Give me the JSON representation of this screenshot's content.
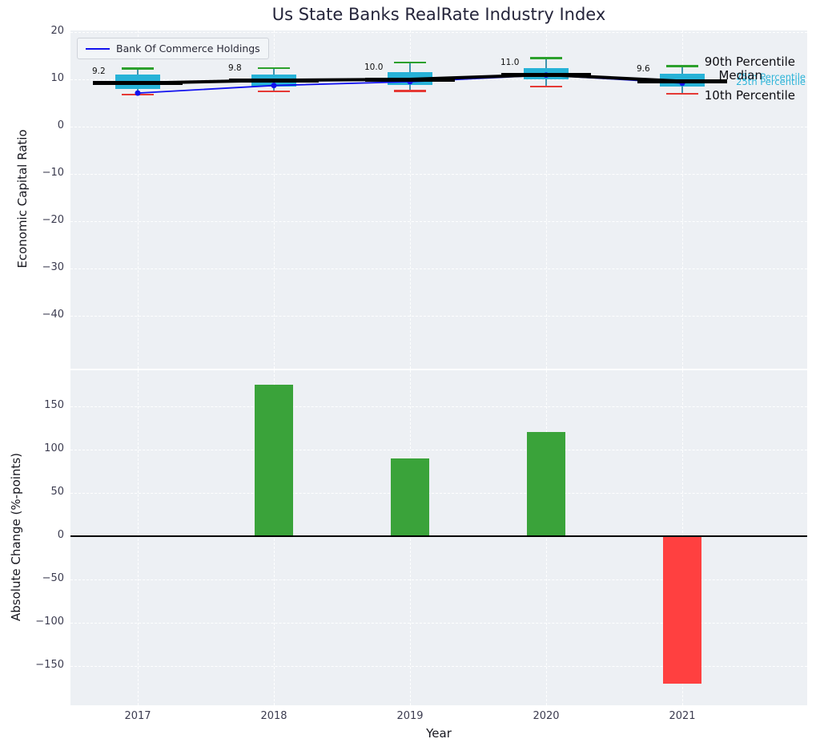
{
  "title": "Us State Banks RealRate Industry Index",
  "figure": {
    "background": "#ffffff",
    "panel_background": "#edf0f4",
    "grid_color": "#ffffff"
  },
  "colors": {
    "box": "#27b2d7",
    "whisker_line": "#3f93ae",
    "whisker_high": "#2ca02c",
    "whisker_low": "#e53935",
    "median": "#000000",
    "company_line": "#1212ef",
    "bar_positive": "#3aa33a",
    "bar_negative": "#ff4040",
    "tick_text": "#3c3c50",
    "annotation_text": "#0d0d12",
    "annotation_cyan": "#2db4d8"
  },
  "chart_data": [
    {
      "type": "boxplot+line",
      "title": "Us State Banks RealRate Industry Index",
      "ylabel": "Economic Capital Ratio",
      "ylim": [
        -51,
        20.3
      ],
      "grid": true,
      "legend_position": "upper-left",
      "yticks": [
        20,
        10,
        0,
        -10,
        -20,
        -30,
        -40
      ],
      "ytick_labels": [
        "20",
        "10",
        "0",
        "−10",
        "−20",
        "−30",
        "−40"
      ],
      "x": [
        "2017",
        "2018",
        "2019",
        "2020",
        "2021"
      ],
      "percentiles": {
        "p90": [
          12.3,
          12.4,
          13.6,
          14.5,
          12.8
        ],
        "p75": [
          11.0,
          11.0,
          11.5,
          12.4,
          11.2
        ],
        "median": [
          9.2,
          9.8,
          10.0,
          11.0,
          9.6
        ],
        "p25": [
          8.0,
          8.5,
          8.8,
          10.0,
          8.5
        ],
        "p10": [
          6.8,
          7.5,
          7.6,
          8.5,
          7.0
        ]
      },
      "median_labels": [
        "9.2",
        "9.8",
        "10.0",
        "11.0",
        "9.6"
      ],
      "series": [
        {
          "name": "Bank Of Commerce Holdings",
          "values": [
            7.1,
            8.7,
            9.5,
            10.9,
            9.2
          ]
        }
      ],
      "annotations": {
        "p90": "90th Percentile",
        "median": "Median",
        "p10": "10th Percentile",
        "p75": "75th Percentile",
        "p25": "25th Percentile"
      }
    },
    {
      "type": "bar",
      "ylabel": "Absolute Change (%-points)",
      "xlabel": "Year",
      "grid": true,
      "ylim": [
        -195,
        192
      ],
      "yticks": [
        150,
        100,
        50,
        0,
        -50,
        -100,
        -150
      ],
      "ytick_labels": [
        "150",
        "100",
        "50",
        "0",
        "−50",
        "−100",
        "−150"
      ],
      "categories": [
        "2017",
        "2018",
        "2019",
        "2020",
        "2021"
      ],
      "values": [
        0,
        175,
        90,
        120,
        -170
      ]
    }
  ]
}
